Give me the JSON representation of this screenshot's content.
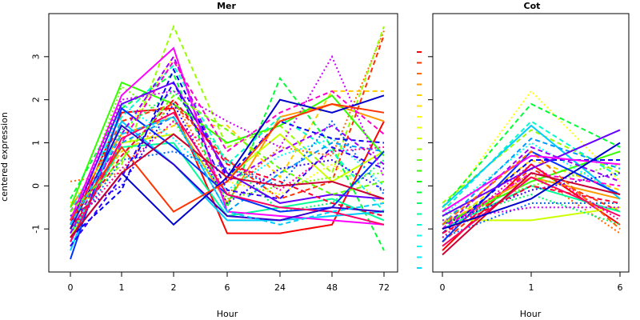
{
  "chart_data": [
    {
      "type": "line",
      "title": "Mer",
      "ylabel": "centered expression",
      "xlabel": "Hour",
      "categories": [
        "0",
        "1",
        "2",
        "6",
        "24",
        "48",
        "72"
      ],
      "ylim": [
        -2,
        4
      ],
      "yticks": [
        -1,
        0,
        1,
        2,
        3
      ],
      "grid": false,
      "series": [
        {
          "color": "#ff0000",
          "dash": "solid",
          "values": [
            -1.0,
            1.7,
            1.8,
            -1.1,
            -1.1,
            -0.9,
            1.5
          ]
        },
        {
          "color": "#ff3300",
          "dash": "dashed",
          "values": [
            -0.8,
            1.5,
            1.9,
            0.6,
            -0.3,
            0.1,
            3.5
          ]
        },
        {
          "color": "#ff6600",
          "dash": "dotted",
          "values": [
            0.1,
            0.3,
            2.0,
            -0.2,
            0.9,
            0.7,
            3.6
          ]
        },
        {
          "color": "#ff9900",
          "dash": "solid",
          "values": [
            -0.5,
            1.2,
            1.6,
            -0.4,
            1.6,
            1.9,
            1.5
          ]
        },
        {
          "color": "#ffcc00",
          "dash": "dashed",
          "values": [
            -0.9,
            0.8,
            1.4,
            1.4,
            0.2,
            2.2,
            2.2
          ]
        },
        {
          "color": "#ffff00",
          "dash": "dotted",
          "values": [
            -0.4,
            1.1,
            3.0,
            0.1,
            -0.2,
            0.5,
            -0.4
          ]
        },
        {
          "color": "#ccff00",
          "dash": "solid",
          "values": [
            -1.2,
            1.0,
            1.2,
            0.2,
            1.2,
            0.1,
            0.8
          ]
        },
        {
          "color": "#99ff00",
          "dash": "dashed",
          "values": [
            -0.7,
            0.5,
            3.7,
            0.9,
            1.4,
            0.3,
            3.7
          ]
        },
        {
          "color": "#66ff00",
          "dash": "dotted",
          "values": [
            -1.0,
            2.3,
            1.5,
            -0.3,
            0.0,
            0.2,
            0.3
          ]
        },
        {
          "color": "#33ff00",
          "dash": "solid",
          "values": [
            -0.5,
            2.4,
            1.9,
            1.0,
            1.4,
            2.1,
            0.7
          ]
        },
        {
          "color": "#00ff33",
          "dash": "dashed",
          "values": [
            -0.3,
            1.8,
            2.6,
            -0.5,
            2.5,
            0.9,
            -1.5
          ]
        },
        {
          "color": "#00ff66",
          "dash": "dotted",
          "values": [
            -0.9,
            1.3,
            2.2,
            0.6,
            -0.6,
            -0.4,
            0.6
          ]
        },
        {
          "color": "#00ff99",
          "dash": "solid",
          "values": [
            -1.1,
            0.9,
            1.0,
            -0.7,
            -0.5,
            -0.3,
            -0.8
          ]
        },
        {
          "color": "#00ffcc",
          "dash": "dashed",
          "values": [
            -0.6,
            1.6,
            2.8,
            0.5,
            1.6,
            0.8,
            -0.6
          ]
        },
        {
          "color": "#00ffff",
          "dash": "dotted",
          "values": [
            -1.4,
            1.9,
            1.1,
            -0.1,
            0.7,
            1.1,
            0.0
          ]
        },
        {
          "color": "#00ccff",
          "dash": "solid",
          "values": [
            -1.5,
            1.5,
            0.5,
            -0.8,
            -0.8,
            -0.7,
            -0.6
          ]
        },
        {
          "color": "#0099ff",
          "dash": "dashed",
          "values": [
            -1.3,
            1.0,
            1.6,
            -0.6,
            0.3,
            1.0,
            0.8
          ]
        },
        {
          "color": "#0066ff",
          "dash": "dotted",
          "values": [
            -1.1,
            0.6,
            0.8,
            0.4,
            0.0,
            1.5,
            -0.2
          ]
        },
        {
          "color": "#0033ff",
          "dash": "solid",
          "values": [
            -1.7,
            1.8,
            0.9,
            -0.2,
            -0.6,
            -0.5,
            0.8
          ]
        },
        {
          "color": "#0000ff",
          "dash": "dashed",
          "values": [
            -1.2,
            -0.1,
            2.7,
            0.2,
            1.5,
            1.1,
            1.0
          ]
        },
        {
          "color": "#3300ff",
          "dash": "dotted",
          "values": [
            -0.7,
            0.0,
            1.9,
            -0.4,
            0.4,
            0.6,
            -0.1
          ]
        },
        {
          "color": "#6600ff",
          "dash": "solid",
          "values": [
            -0.9,
            1.9,
            2.4,
            0.3,
            -0.4,
            -0.2,
            -0.3
          ]
        },
        {
          "color": "#9900ff",
          "dash": "dashed",
          "values": [
            -1.1,
            1.2,
            3.0,
            0.1,
            0.8,
            1.4,
            0.5
          ]
        },
        {
          "color": "#cc00ff",
          "dash": "dotted",
          "values": [
            -0.8,
            2.0,
            2.2,
            1.5,
            0.9,
            3.0,
            0.2
          ]
        },
        {
          "color": "#ff00ff",
          "dash": "solid",
          "values": [
            -0.8,
            2.1,
            3.2,
            -0.6,
            -0.7,
            -0.8,
            -0.9
          ]
        },
        {
          "color": "#ff00cc",
          "dash": "dashed",
          "values": [
            -0.6,
            1.0,
            2.9,
            0.8,
            1.7,
            2.2,
            1.2
          ]
        },
        {
          "color": "#ff0099",
          "dash": "dotted",
          "values": [
            -1.0,
            0.4,
            1.5,
            0.6,
            -0.1,
            0.8,
            0.9
          ]
        },
        {
          "color": "#ff0066",
          "dash": "solid",
          "values": [
            -1.3,
            1.1,
            1.7,
            -0.2,
            -0.5,
            -0.6,
            -0.9
          ]
        },
        {
          "color": "#ff0033",
          "dash": "dashed",
          "values": [
            -1.0,
            0.7,
            2.0,
            0.5,
            0.1,
            -0.4,
            -0.7
          ]
        },
        {
          "color": "#0000cc",
          "dash": "solid",
          "values": [
            -1.2,
            0.3,
            -0.9,
            0.2,
            2.0,
            1.7,
            2.1
          ]
        },
        {
          "color": "#3300cc",
          "dash": "solid",
          "values": [
            -1.0,
            1.4,
            0.5,
            -0.7,
            -0.8,
            -0.5,
            -0.6
          ]
        },
        {
          "color": "#cc0033",
          "dash": "solid",
          "values": [
            -1.2,
            0.3,
            1.2,
            0.2,
            0.0,
            0.1,
            -0.3
          ]
        },
        {
          "color": "#ff3300",
          "dash": "solid",
          "values": [
            -0.8,
            0.9,
            -0.6,
            0.1,
            1.5,
            1.9,
            1.7
          ]
        },
        {
          "color": "#3300ff",
          "dash": "dashed",
          "values": [
            -1.4,
            0.2,
            2.4,
            -0.1,
            -0.3,
            0.9,
            0.4
          ]
        },
        {
          "color": "#00ccff",
          "dash": "dashed",
          "values": [
            -0.9,
            1.2,
            1.6,
            -0.6,
            -0.9,
            -0.6,
            -0.4
          ]
        },
        {
          "color": "#66ff00",
          "dash": "dashed",
          "values": [
            -0.6,
            0.6,
            2.1,
            1.3,
            0.4,
            -0.2,
            0.1
          ]
        }
      ]
    },
    {
      "type": "line",
      "title": "Cot",
      "xlabel": "Hour",
      "categories": [
        "0",
        "1",
        "6"
      ],
      "ylim": [
        -2,
        4
      ],
      "grid": false,
      "series": [
        {
          "color": "#ff0000",
          "dash": "solid",
          "values": [
            -1.5,
            0.5,
            -0.9
          ]
        },
        {
          "color": "#ff3300",
          "dash": "dashed",
          "values": [
            -1.3,
            0.4,
            -0.6
          ]
        },
        {
          "color": "#ff6600",
          "dash": "dotted",
          "values": [
            -1.1,
            0.3,
            -1.1
          ]
        },
        {
          "color": "#ff9900",
          "dash": "solid",
          "values": [
            -0.9,
            0.2,
            -0.3
          ]
        },
        {
          "color": "#ffcc00",
          "dash": "dashed",
          "values": [
            -1.0,
            0.6,
            -0.1
          ]
        },
        {
          "color": "#ffff00",
          "dash": "dotted",
          "values": [
            -0.6,
            2.2,
            0.1
          ]
        },
        {
          "color": "#ccff00",
          "dash": "solid",
          "values": [
            -0.8,
            -0.8,
            -0.5
          ]
        },
        {
          "color": "#99ff00",
          "dash": "dashed",
          "values": [
            -0.4,
            1.3,
            0.3
          ]
        },
        {
          "color": "#66ff00",
          "dash": "dotted",
          "values": [
            -0.7,
            0.0,
            0.5
          ]
        },
        {
          "color": "#33ff00",
          "dash": "solid",
          "values": [
            -0.9,
            0.1,
            0.8
          ]
        },
        {
          "color": "#00ff33",
          "dash": "dashed",
          "values": [
            -0.5,
            1.9,
            0.9
          ]
        },
        {
          "color": "#00ff66",
          "dash": "dotted",
          "values": [
            -0.8,
            -0.2,
            -0.9
          ]
        },
        {
          "color": "#00ff99",
          "dash": "solid",
          "values": [
            -1.0,
            0.0,
            -0.6
          ]
        },
        {
          "color": "#00ffcc",
          "dash": "dashed",
          "values": [
            -0.6,
            1.5,
            0.2
          ]
        },
        {
          "color": "#00ffff",
          "dash": "dotted",
          "values": [
            -0.7,
            1.0,
            -0.2
          ]
        },
        {
          "color": "#00ccff",
          "dash": "solid",
          "values": [
            -0.5,
            1.4,
            -0.3
          ]
        },
        {
          "color": "#0099ff",
          "dash": "dashed",
          "values": [
            -0.9,
            1.1,
            0.4
          ]
        },
        {
          "color": "#0066ff",
          "dash": "dotted",
          "values": [
            -1.2,
            -0.4,
            -0.4
          ]
        },
        {
          "color": "#0033ff",
          "dash": "solid",
          "values": [
            -1.3,
            0.8,
            -0.2
          ]
        },
        {
          "color": "#0000ff",
          "dash": "dashed",
          "values": [
            -1.1,
            0.6,
            0.6
          ]
        },
        {
          "color": "#3300ff",
          "dash": "dotted",
          "values": [
            -0.9,
            -0.1,
            0.3
          ]
        },
        {
          "color": "#6600ff",
          "dash": "solid",
          "values": [
            -0.7,
            0.4,
            1.3
          ]
        },
        {
          "color": "#9900ff",
          "dash": "dashed",
          "values": [
            -1.0,
            0.9,
            0.1
          ]
        },
        {
          "color": "#cc00ff",
          "dash": "dotted",
          "values": [
            -0.8,
            -0.5,
            -0.5
          ]
        },
        {
          "color": "#ff00ff",
          "dash": "solid",
          "values": [
            -0.6,
            0.7,
            0.5
          ]
        },
        {
          "color": "#ff00cc",
          "dash": "dashed",
          "values": [
            -1.0,
            0.3,
            0.0
          ]
        },
        {
          "color": "#ff0099",
          "dash": "dotted",
          "values": [
            -1.2,
            0.5,
            -0.8
          ]
        },
        {
          "color": "#ff0066",
          "dash": "solid",
          "values": [
            -1.4,
            0.2,
            -0.7
          ]
        },
        {
          "color": "#ff0033",
          "dash": "dashed",
          "values": [
            -1.1,
            0.0,
            -0.4
          ]
        },
        {
          "color": "#cc0033",
          "dash": "solid",
          "values": [
            -1.6,
            0.3,
            -0.2
          ]
        },
        {
          "color": "#0000cc",
          "dash": "solid",
          "values": [
            -1.0,
            -0.3,
            1.0
          ]
        },
        {
          "color": "#ff6600",
          "dash": "dashed",
          "values": [
            -0.9,
            0.8,
            -1.0
          ]
        }
      ]
    }
  ],
  "legend_swatches": [
    "#ff0000",
    "#ff3300",
    "#ff6600",
    "#ff9900",
    "#ffcc00",
    "#ffdd00",
    "#ffff00",
    "#e6ff00",
    "#ccff00",
    "#99ff00",
    "#66ff00",
    "#33ff00",
    "#00ff00",
    "#00ff33",
    "#00ff66",
    "#00ff99",
    "#00ffcc",
    "#00ffee",
    "#00ffff",
    "#00eeff",
    "#00ddff"
  ]
}
